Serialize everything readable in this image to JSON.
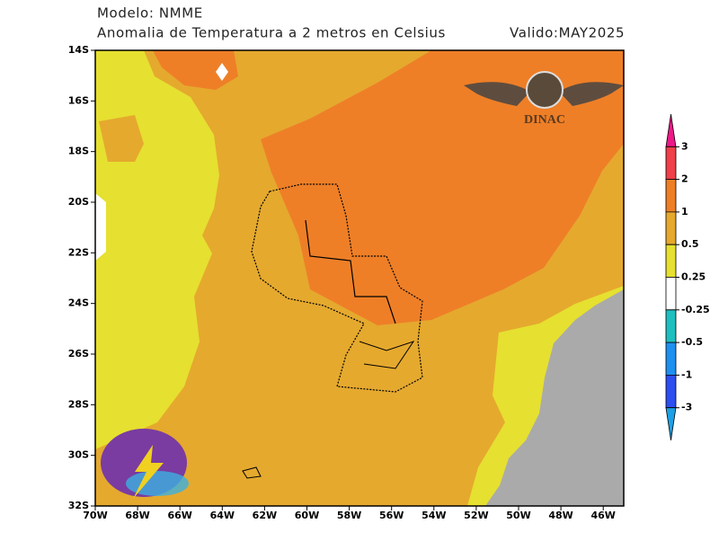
{
  "header": {
    "model": "Modelo: NMME",
    "title": "Anomalia de Temperatura a 2 metros en Celsius",
    "valid": "Valido:MAY2025"
  },
  "map": {
    "lat_labels": [
      "14S",
      "16S",
      "18S",
      "20S",
      "22S",
      "24S",
      "26S",
      "28S",
      "30S",
      "32S"
    ],
    "lon_labels": [
      "70W",
      "68W",
      "66W",
      "64W",
      "62W",
      "60W",
      "58W",
      "56W",
      "54W",
      "52W",
      "50W",
      "48W",
      "46W"
    ],
    "logo": "DINAC"
  },
  "colorbar": {
    "labels": [
      "3",
      "2",
      "1",
      "0.5",
      "0.25",
      "-0.25",
      "-0.5",
      "-1",
      "-3"
    ],
    "colors": [
      "#ee1889",
      "#f0404a",
      "#ee7f27",
      "#e5a92e",
      "#e6e030",
      "#ffffff",
      "#1fbfbf",
      "#1e90f0",
      "#2d4ff0",
      "#1ea0e6"
    ]
  }
}
